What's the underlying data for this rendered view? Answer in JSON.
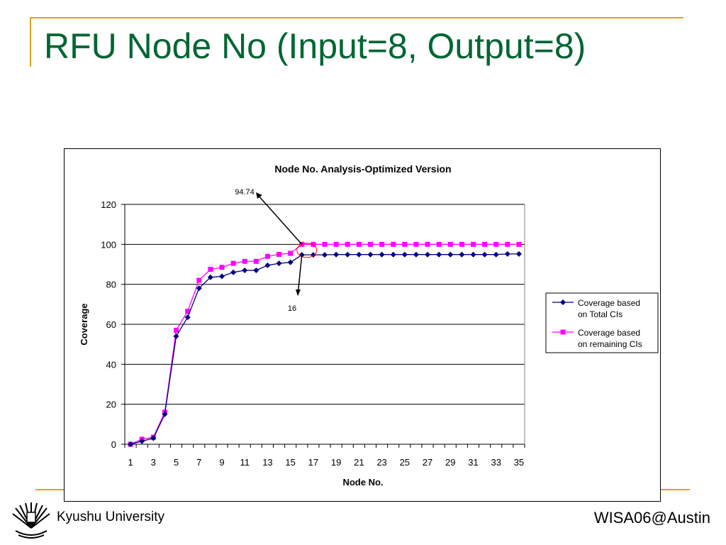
{
  "slide": {
    "title": "RFU Node No (Input=8, Output=8)",
    "footer_left": "Kyushu University",
    "footer_right": "WISA06@Austin"
  },
  "colors": {
    "title": "#006633",
    "accent_line": "#d9a521",
    "series_total": "#000080",
    "series_remaining": "#ff00ff",
    "annotation_circle": "#ff0000"
  },
  "chart_data": {
    "type": "line",
    "title": "Node No. Analysis-Optimized Version",
    "xlabel": "Node No.",
    "ylabel": "Coverage",
    "x": [
      1,
      2,
      3,
      4,
      5,
      6,
      7,
      8,
      9,
      10,
      11,
      12,
      13,
      14,
      15,
      16,
      17,
      18,
      19,
      20,
      21,
      22,
      23,
      24,
      25,
      26,
      27,
      28,
      29,
      30,
      31,
      32,
      33,
      34,
      35
    ],
    "x_tick_labels": [
      "1",
      "3",
      "5",
      "7",
      "9",
      "11",
      "13",
      "15",
      "17",
      "19",
      "21",
      "23",
      "25",
      "27",
      "29",
      "31",
      "33",
      "35"
    ],
    "ylim": [
      0,
      120
    ],
    "y_ticks": [
      0,
      20,
      40,
      60,
      80,
      100,
      120
    ],
    "grid": true,
    "legend_position": "right",
    "series": [
      {
        "name": "Coverage based on Total CIs",
        "legend_lines": [
          "Coverage based",
          "on Total CIs"
        ],
        "marker": "diamond",
        "values": [
          0,
          1.5,
          3,
          15,
          54,
          63.5,
          78,
          83.5,
          84,
          86,
          87,
          87,
          89.5,
          90.5,
          91,
          94.74,
          94.74,
          94.74,
          94.9,
          94.9,
          94.9,
          94.9,
          94.9,
          94.9,
          94.9,
          94.9,
          94.9,
          94.9,
          94.9,
          94.9,
          94.9,
          94.9,
          94.9,
          95.2,
          95.2
        ]
      },
      {
        "name": "Coverage based on remaining CIs",
        "legend_lines": [
          "Coverage based",
          "on remaining CIs"
        ],
        "marker": "square",
        "values": [
          0,
          2.5,
          3.5,
          16,
          57,
          66.5,
          82,
          87.5,
          88.5,
          90.5,
          91.5,
          91.5,
          94,
          95,
          95.5,
          100,
          100,
          100,
          100,
          100,
          100,
          100,
          100,
          100,
          100,
          100,
          100,
          100,
          100,
          100,
          100,
          100,
          100,
          100,
          100
        ]
      }
    ],
    "annotations": [
      {
        "text": "94.74",
        "points_to": {
          "x": 16,
          "y": 100
        }
      },
      {
        "text": "16",
        "points_to": {
          "x": 16,
          "y": 94.74
        }
      }
    ]
  }
}
